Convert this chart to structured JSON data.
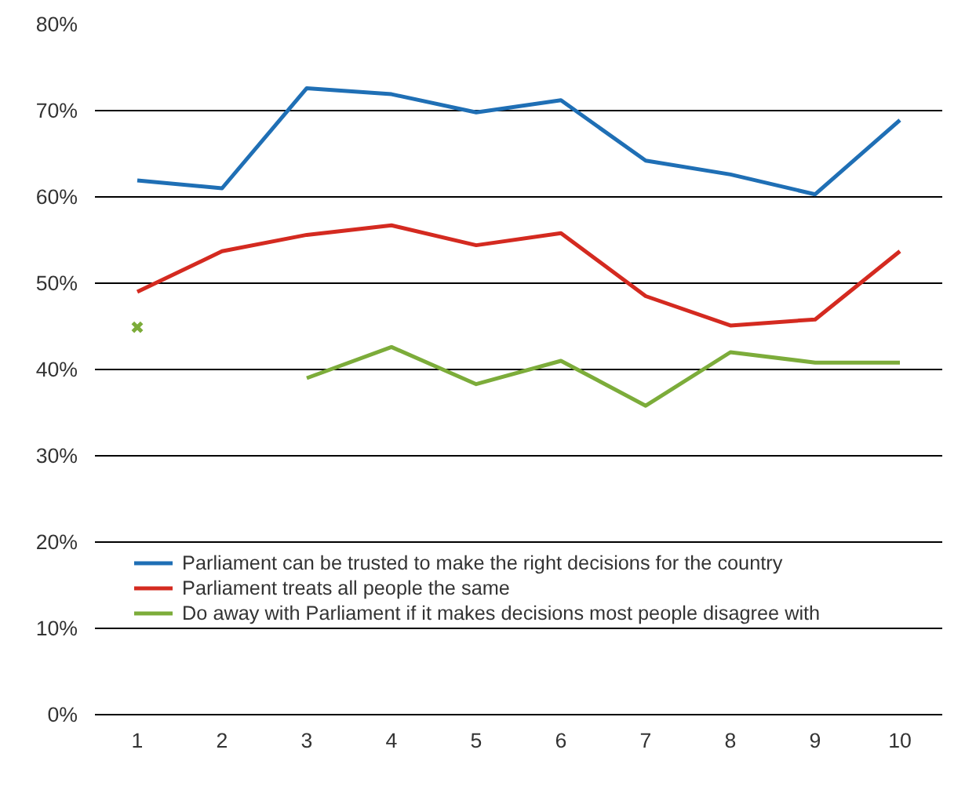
{
  "chart_data": {
    "type": "line",
    "categories": [
      "1",
      "2",
      "3",
      "4",
      "5",
      "6",
      "7",
      "8",
      "9",
      "10"
    ],
    "series": [
      {
        "name": "Parliament can be trusted to make the right decisions for the country",
        "color": "#1f6fb5",
        "values": [
          61.9,
          61.0,
          72.6,
          71.9,
          69.8,
          71.2,
          64.2,
          62.6,
          60.3,
          68.9
        ]
      },
      {
        "name": "Parliament treats all people the same",
        "color": "#d42a20",
        "values": [
          49.0,
          53.7,
          55.6,
          56.7,
          54.4,
          55.8,
          48.5,
          45.1,
          45.8,
          53.7
        ]
      },
      {
        "name": "Do away with Parliament if it makes decisions most people disagree with",
        "color": "#7cac3a",
        "values": [
          null,
          null,
          39.0,
          42.6,
          38.3,
          41.0,
          35.8,
          42.0,
          40.8,
          40.8
        ]
      },
      {
        "type": "scatter",
        "color": "#7cac3a",
        "marker": "cross",
        "values": [
          44.9,
          null,
          null,
          null,
          null,
          null,
          null,
          null,
          null,
          null
        ]
      }
    ],
    "ylim": [
      0,
      80
    ],
    "yticks": [
      {
        "value": 0,
        "label": "0%"
      },
      {
        "value": 10,
        "label": "10%"
      },
      {
        "value": 20,
        "label": "20%"
      },
      {
        "value": 30,
        "label": "30%"
      },
      {
        "value": 40,
        "label": "40%"
      },
      {
        "value": 50,
        "label": "50%"
      },
      {
        "value": 60,
        "label": "60%"
      },
      {
        "value": 70,
        "label": "70%"
      },
      {
        "value": 80,
        "label": "80%"
      }
    ],
    "grid": "y",
    "legend": "bottom",
    "line_style": "solid"
  }
}
